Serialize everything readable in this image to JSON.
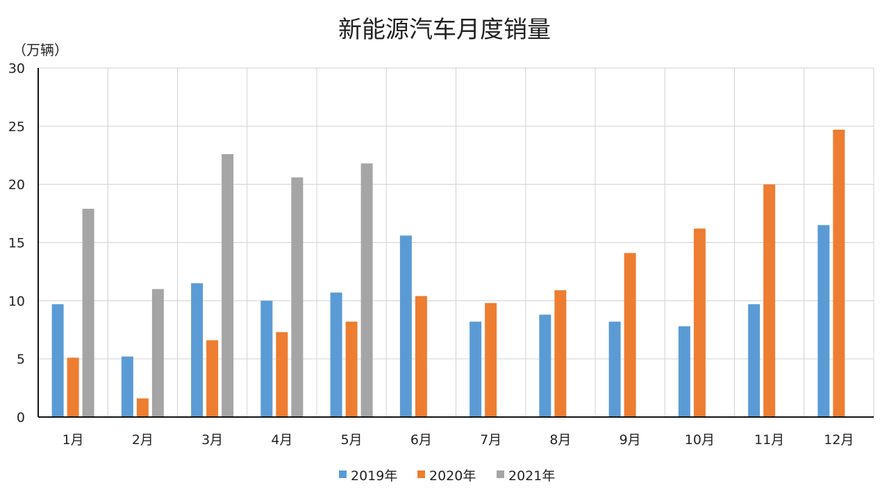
{
  "chart_data": {
    "type": "bar",
    "title": "新能源汽车月度销量",
    "ylabel": "（万辆）",
    "xlabel": "",
    "ylim": [
      0,
      30
    ],
    "yticks": [
      0,
      5,
      10,
      15,
      20,
      25,
      30
    ],
    "grid": true,
    "legend_placement": "bottom",
    "categories": [
      "1月",
      "2月",
      "3月",
      "4月",
      "5月",
      "6月",
      "7月",
      "8月",
      "9月",
      "10月",
      "11月",
      "12月"
    ],
    "series": [
      {
        "name": "2019年",
        "color": "#5b9bd5",
        "values": [
          9.7,
          5.2,
          11.5,
          10.0,
          10.7,
          15.6,
          8.2,
          8.8,
          8.2,
          7.8,
          9.7,
          16.5
        ]
      },
      {
        "name": "2020年",
        "color": "#ed7d31",
        "values": [
          5.1,
          1.6,
          6.6,
          7.3,
          8.2,
          10.4,
          9.8,
          10.9,
          14.1,
          16.2,
          20.0,
          24.7
        ]
      },
      {
        "name": "2021年",
        "color": "#a5a5a5",
        "values": [
          17.9,
          11.0,
          22.6,
          20.6,
          21.8,
          null,
          null,
          null,
          null,
          null,
          null,
          null
        ]
      }
    ]
  }
}
